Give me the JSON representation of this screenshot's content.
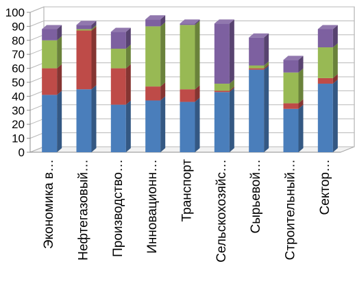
{
  "chart_data": {
    "type": "bar",
    "stacked": true,
    "three_d": true,
    "title": "",
    "xlabel": "",
    "ylabel": "",
    "ylim": [
      0,
      100
    ],
    "yticks": [
      0,
      10,
      20,
      30,
      40,
      50,
      60,
      70,
      80,
      90,
      100
    ],
    "grid": true,
    "legend": "none",
    "categories": [
      "Экономика в…",
      "Нефтегазовый…",
      "Производство…",
      "Инновационн…",
      "Транспорт",
      "Сельскохозяйс…",
      "Сырьевой…",
      "Строительный…",
      "Сектор…"
    ],
    "series": [
      {
        "color": "#4a7ebb",
        "values": [
          41,
          45,
          34,
          37,
          36,
          43,
          59,
          31,
          49
        ]
      },
      {
        "color": "#be4b48",
        "values": [
          19,
          42,
          26,
          10,
          9,
          1,
          1,
          4,
          4
        ]
      },
      {
        "color": "#98b954",
        "values": [
          20,
          1,
          14,
          43,
          46,
          5,
          2,
          22,
          22
        ]
      },
      {
        "color": "#7d60a0",
        "values": [
          8,
          3,
          12,
          5,
          1,
          43,
          20,
          9,
          13
        ]
      }
    ]
  }
}
